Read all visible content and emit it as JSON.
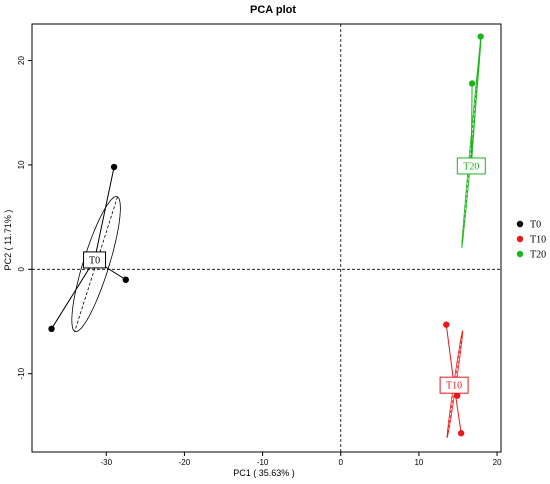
{
  "chart_data": {
    "type": "scatter",
    "title": "PCA plot",
    "xlabel": "PC1 ( 35.63% )",
    "ylabel": "PC2 ( 11.71% )",
    "xlim": [
      -39.5,
      20.5
    ],
    "ylim": [
      -17.5,
      23.5
    ],
    "xticks": [
      "-30",
      "-20",
      "-10",
      "0",
      "10",
      "20"
    ],
    "yticks": [
      "-10",
      "0",
      "10",
      "20"
    ],
    "xtick_values": [
      -30,
      -20,
      -10,
      0,
      10,
      20
    ],
    "ytick_values": [
      -10,
      0,
      10,
      20
    ],
    "reference_lines": {
      "x": 0,
      "y": 0
    },
    "legend_position": "right",
    "series": [
      {
        "name": "T0",
        "color": "#000000",
        "centroid": [
          -31.5,
          0.9
        ],
        "label": "T0",
        "points": [
          [
            -29.0,
            9.8
          ],
          [
            -27.5,
            -1.0
          ],
          [
            -37.0,
            -5.7
          ]
        ],
        "ellipse": {
          "center": [
            -31.3,
            0.5
          ],
          "rx": 7.0,
          "ry": 1.6,
          "angle_deg": 67
        }
      },
      {
        "name": "T10",
        "color": "#e41a1c",
        "centroid": [
          14.5,
          -11.1
        ],
        "label": "T10",
        "points": [
          [
            13.5,
            -5.3
          ],
          [
            14.9,
            -12.1
          ],
          [
            15.4,
            -15.7
          ]
        ],
        "ellipse": {
          "center": [
            14.6,
            -11.0
          ],
          "rx": 5.2,
          "ry": 0.15,
          "angle_deg": 79
        }
      },
      {
        "name": "T20",
        "color": "#1bb51b",
        "centroid": [
          16.7,
          9.9
        ],
        "label": "T20",
        "points": [
          [
            16.8,
            17.8
          ],
          [
            17.9,
            22.3
          ]
        ],
        "ellipse": {
          "center": [
            16.7,
            12.0
          ],
          "rx": 10.0,
          "ry": 0.12,
          "angle_deg": 83
        }
      }
    ],
    "legend": [
      "T0",
      "T10",
      "T20"
    ]
  }
}
